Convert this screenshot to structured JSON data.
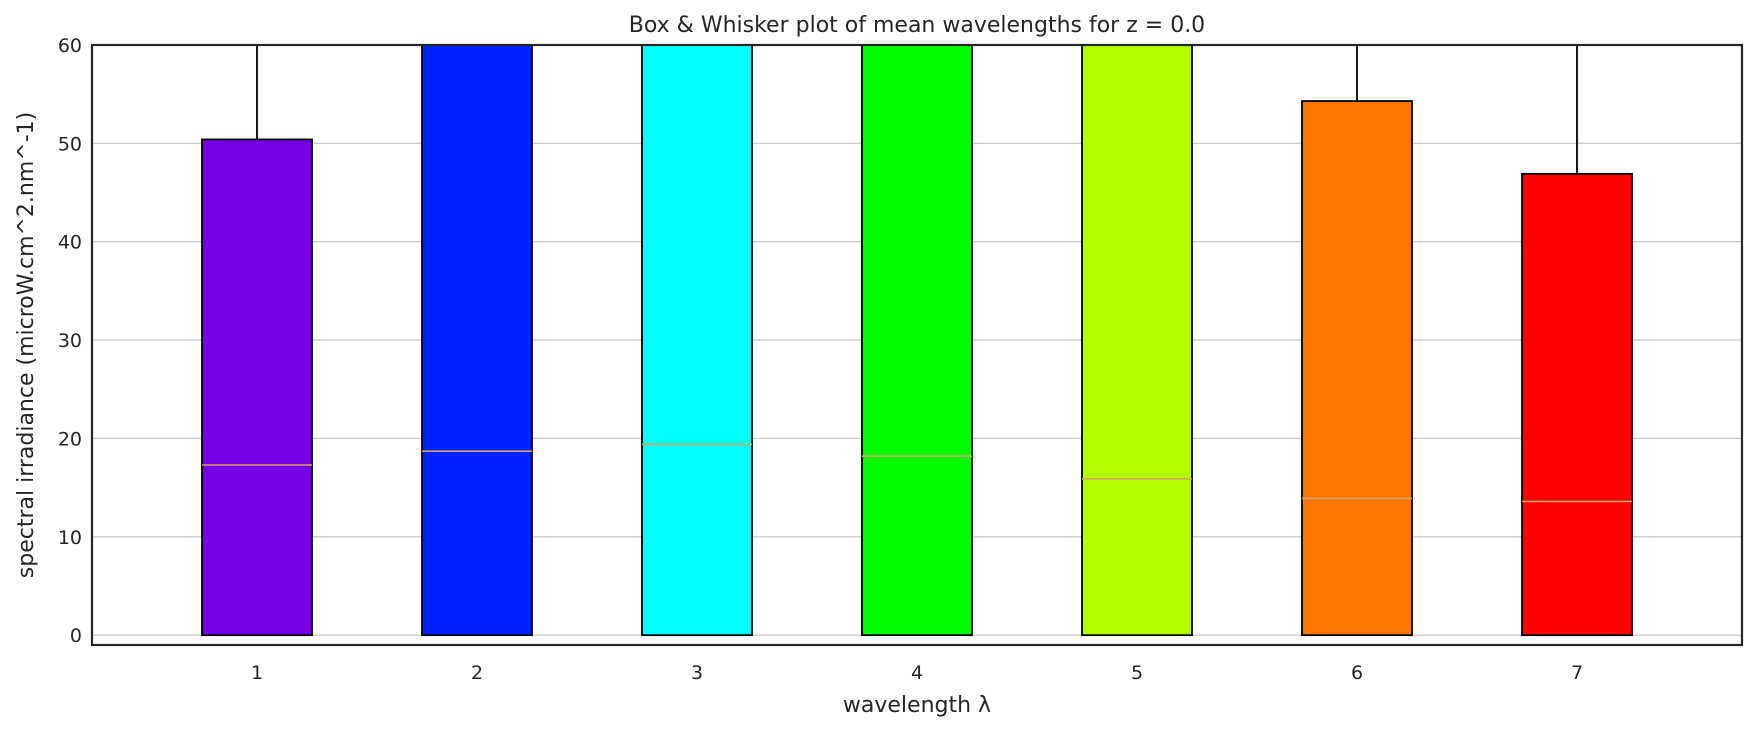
{
  "chart_data": {
    "type": "box",
    "title": "Box & Whisker plot of mean wavelengths for z = 0.0",
    "xlabel": "wavelength λ",
    "ylabel": "spectral irradiance (microW.cm^2.nm^-1)",
    "ylim": [
      -1,
      60
    ],
    "yticks": [
      0,
      10,
      20,
      30,
      40,
      50,
      60
    ],
    "grid": "horizontal",
    "categories": [
      "1",
      "2",
      "3",
      "4",
      "5",
      "6",
      "7"
    ],
    "boxes": [
      {
        "category": "1",
        "q1": 0,
        "median": 17.3,
        "q3": 50.4,
        "whisker_high": 60,
        "color": "#7700e6"
      },
      {
        "category": "2",
        "q1": 0,
        "median": 18.7,
        "q3": 60,
        "whisker_high": 60,
        "color": "#0022ff"
      },
      {
        "category": "3",
        "q1": 0,
        "median": 19.4,
        "q3": 60,
        "whisker_high": 60,
        "color": "#00ffff"
      },
      {
        "category": "4",
        "q1": 0,
        "median": 18.2,
        "q3": 60,
        "whisker_high": 60,
        "color": "#00ff00"
      },
      {
        "category": "5",
        "q1": 0,
        "median": 15.9,
        "q3": 60,
        "whisker_high": 60,
        "color": "#b3ff00"
      },
      {
        "category": "6",
        "q1": 0,
        "median": 13.9,
        "q3": 54.3,
        "whisker_high": 60,
        "color": "#ff7700"
      },
      {
        "category": "7",
        "q1": 0,
        "median": 13.6,
        "q3": 46.9,
        "whisker_high": 60,
        "color": "#ff0000"
      }
    ],
    "median_color": "#d9a066"
  }
}
